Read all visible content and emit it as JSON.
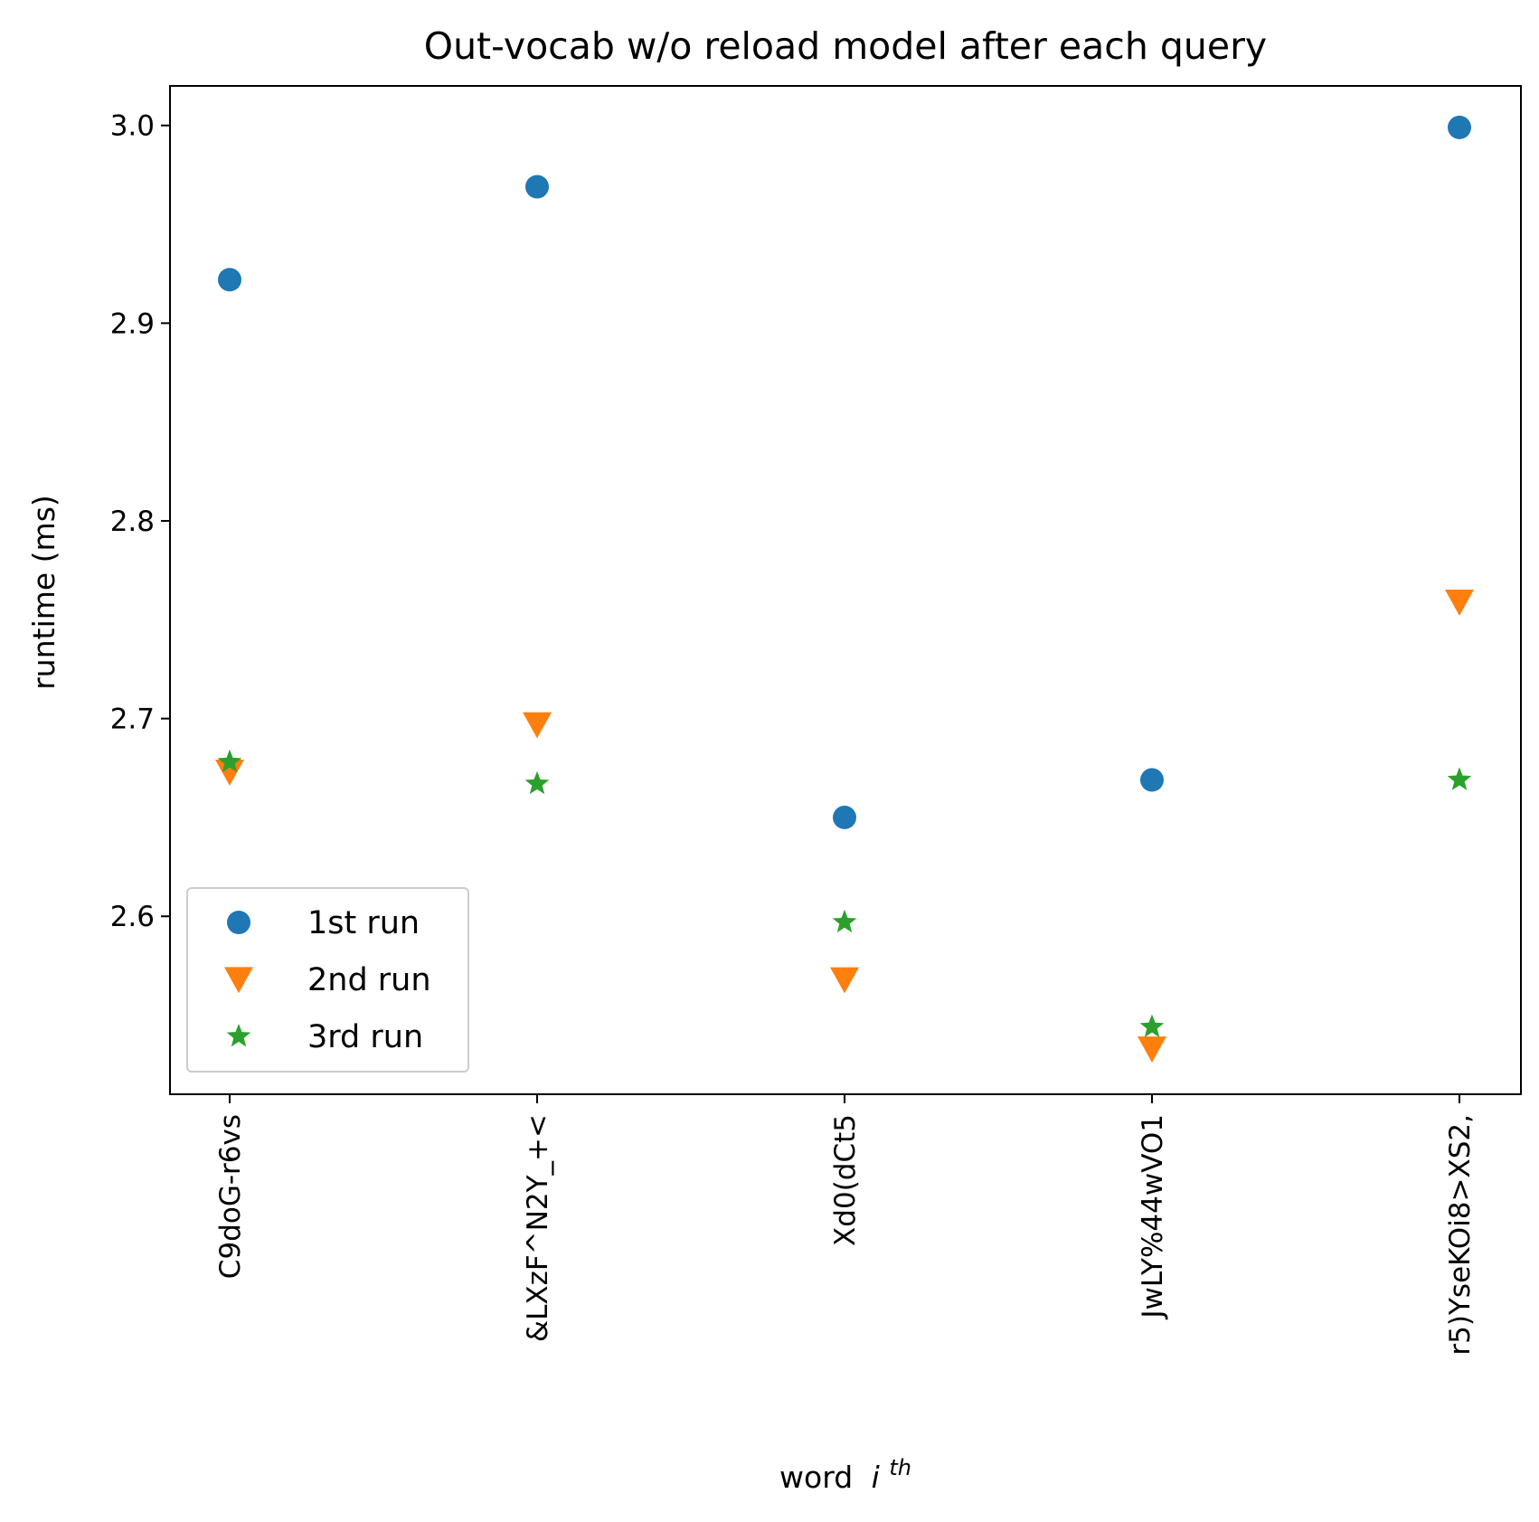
{
  "chart_data": {
    "type": "scatter",
    "title": "Out-vocab w/o reload model after each query",
    "xlabel": "word",
    "xlabel_superscript": "th",
    "xlabel_italic": "i",
    "ylabel": "runtime (ms)",
    "categories": [
      "C9doG-r6vs",
      "&LXzF^N2Y_+<",
      "Xd0(dCt5",
      "JwLY%44wVO1",
      "r5)YseKOi8>XS2,"
    ],
    "ylim": [
      2.51,
      3.02
    ],
    "yticks": [
      2.6,
      2.7,
      2.8,
      2.9,
      3.0
    ],
    "ytick_labels": [
      "2.6",
      "2.7",
      "2.8",
      "2.9",
      "3.0"
    ],
    "grid": false,
    "legend_position": "lower-left",
    "series": [
      {
        "name": "1st run",
        "marker": "circle",
        "color": "#1f77b4",
        "values": [
          2.922,
          2.969,
          2.65,
          2.669,
          2.999
        ]
      },
      {
        "name": "2nd run",
        "marker": "triangle-down",
        "color": "#ff7f0e",
        "values": [
          2.673,
          2.697,
          2.568,
          2.533,
          2.759
        ]
      },
      {
        "name": "3rd run",
        "marker": "star",
        "color": "#2ca02c",
        "values": [
          2.678,
          2.667,
          2.597,
          2.544,
          2.669
        ]
      }
    ]
  }
}
